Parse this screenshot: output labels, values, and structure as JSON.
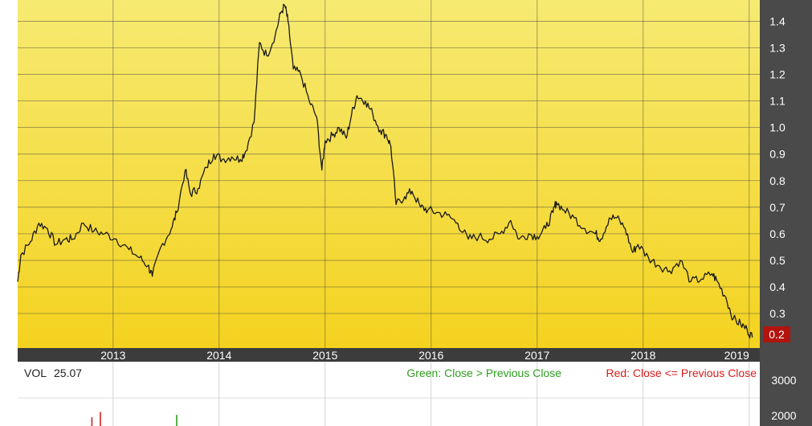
{
  "chart_data": [
    {
      "type": "line",
      "title": "",
      "xlabel": "",
      "ylabel": "",
      "x_ticks": [
        "2013",
        "2014",
        "2015",
        "2016",
        "2017",
        "2018",
        "2019"
      ],
      "y_ticks": [
        "1.4",
        "1.3",
        "1.2",
        "1.1",
        "1.0",
        "0.9",
        "0.8",
        "0.7",
        "0.6",
        "0.5",
        "0.4",
        "0.3"
      ],
      "xlim": [
        2012.1,
        2019.1
      ],
      "ylim": [
        0.17,
        1.48
      ],
      "grid": true,
      "last_value_label": "0.2",
      "series": [
        {
          "values": [
            [
              2012.1,
              0.42
            ],
            [
              2012.13,
              0.52
            ],
            [
              2012.22,
              0.57
            ],
            [
              2012.3,
              0.64
            ],
            [
              2012.38,
              0.62
            ],
            [
              2012.46,
              0.56
            ],
            [
              2012.55,
              0.58
            ],
            [
              2012.62,
              0.58
            ],
            [
              2012.72,
              0.64
            ],
            [
              2012.82,
              0.61
            ],
            [
              2012.92,
              0.6
            ],
            [
              2013.03,
              0.58
            ],
            [
              2013.15,
              0.54
            ],
            [
              2013.25,
              0.51
            ],
            [
              2013.33,
              0.48
            ],
            [
              2013.37,
              0.44
            ],
            [
              2013.45,
              0.55
            ],
            [
              2013.55,
              0.62
            ],
            [
              2013.6,
              0.68
            ],
            [
              2013.68,
              0.84
            ],
            [
              2013.73,
              0.75
            ],
            [
              2013.8,
              0.77
            ],
            [
              2013.88,
              0.85
            ],
            [
              2013.95,
              0.9
            ],
            [
              2014.03,
              0.88
            ],
            [
              2014.12,
              0.89
            ],
            [
              2014.2,
              0.88
            ],
            [
              2014.25,
              0.91
            ],
            [
              2014.33,
              1.02
            ],
            [
              2014.38,
              1.32
            ],
            [
              2014.45,
              1.27
            ],
            [
              2014.53,
              1.35
            ],
            [
              2014.58,
              1.43
            ],
            [
              2014.62,
              1.46
            ],
            [
              2014.65,
              1.4
            ],
            [
              2014.7,
              1.22
            ],
            [
              2014.77,
              1.2
            ],
            [
              2014.85,
              1.1
            ],
            [
              2014.92,
              1.04
            ],
            [
              2014.97,
              0.84
            ],
            [
              2015.0,
              0.95
            ],
            [
              2015.07,
              0.97
            ],
            [
              2015.13,
              1.0
            ],
            [
              2015.2,
              0.96
            ],
            [
              2015.25,
              1.05
            ],
            [
              2015.3,
              1.12
            ],
            [
              2015.38,
              1.1
            ],
            [
              2015.45,
              1.05
            ],
            [
              2015.52,
              0.99
            ],
            [
              2015.58,
              0.97
            ],
            [
              2015.62,
              0.93
            ],
            [
              2015.67,
              0.71
            ],
            [
              2015.75,
              0.74
            ],
            [
              2015.82,
              0.76
            ],
            [
              2015.9,
              0.7
            ],
            [
              2015.97,
              0.69
            ],
            [
              2016.05,
              0.68
            ],
            [
              2016.15,
              0.67
            ],
            [
              2016.25,
              0.64
            ],
            [
              2016.35,
              0.58
            ],
            [
              2016.45,
              0.59
            ],
            [
              2016.55,
              0.58
            ],
            [
              2016.65,
              0.6
            ],
            [
              2016.75,
              0.65
            ],
            [
              2016.83,
              0.58
            ],
            [
              2016.92,
              0.6
            ],
            [
              2017.0,
              0.59
            ],
            [
              2017.08,
              0.62
            ],
            [
              2017.15,
              0.68
            ],
            [
              2017.18,
              0.72
            ],
            [
              2017.25,
              0.69
            ],
            [
              2017.35,
              0.66
            ],
            [
              2017.45,
              0.62
            ],
            [
              2017.55,
              0.6
            ],
            [
              2017.6,
              0.58
            ],
            [
              2017.68,
              0.66
            ],
            [
              2017.75,
              0.66
            ],
            [
              2017.83,
              0.62
            ],
            [
              2017.9,
              0.53
            ],
            [
              2017.95,
              0.56
            ],
            [
              2018.05,
              0.51
            ],
            [
              2018.15,
              0.48
            ],
            [
              2018.25,
              0.46
            ],
            [
              2018.35,
              0.5
            ],
            [
              2018.45,
              0.42
            ],
            [
              2018.55,
              0.43
            ],
            [
              2018.65,
              0.45
            ],
            [
              2018.7,
              0.42
            ],
            [
              2018.78,
              0.36
            ],
            [
              2018.85,
              0.28
            ],
            [
              2018.92,
              0.26
            ],
            [
              2018.98,
              0.24
            ],
            [
              2019.03,
              0.21
            ]
          ]
        }
      ]
    },
    {
      "type": "bar",
      "title": "",
      "y_ticks": [
        "3000",
        "2000"
      ],
      "volume_label": "VOL",
      "volume_value": "25.07",
      "legend": [
        {
          "text": "Green: Close > Previous Close",
          "color": "#2e9e1e"
        },
        {
          "text": "Red: Close <= Previous Close",
          "color": "#d81c1c"
        }
      ],
      "values": [
        [
          2012.8,
          1950,
          "red"
        ],
        [
          2012.88,
          2100,
          "red"
        ],
        [
          2013.6,
          2020,
          "green"
        ]
      ]
    }
  ]
}
